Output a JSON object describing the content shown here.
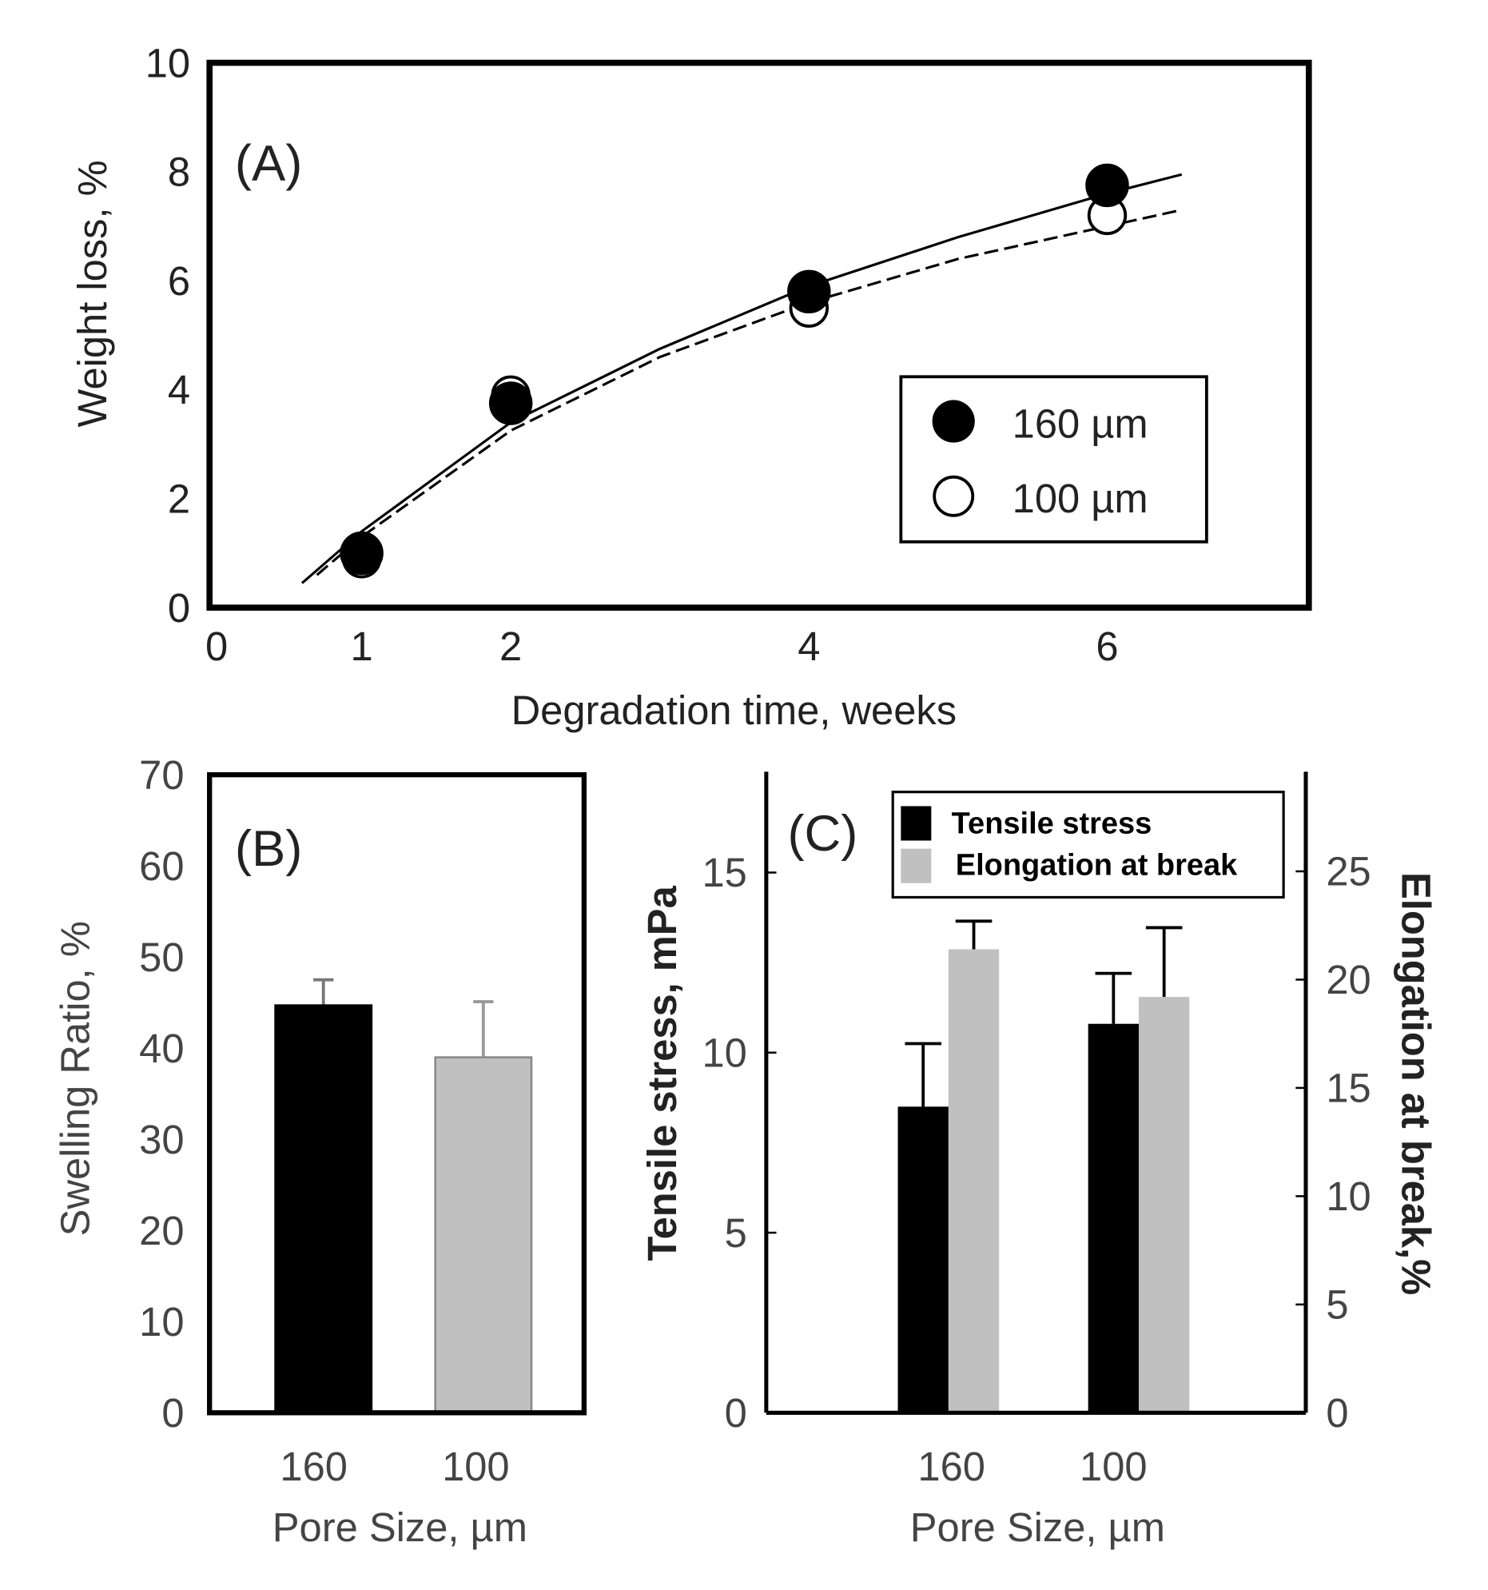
{
  "chart_data": [
    {
      "type": "scatter",
      "panel_label": "(A)",
      "xlabel": "Degradation time, weeks",
      "ylabel": "Weight loss, %",
      "xlim": [
        0,
        7.4
      ],
      "ylim": [
        0,
        10
      ],
      "xticks": [
        "0",
        "1",
        "2",
        "4",
        "6"
      ],
      "yticks": [
        "0",
        "2",
        "4",
        "6",
        "8",
        "10"
      ],
      "legend_position": "bottom-right",
      "series": [
        {
          "name": "160 µm",
          "marker": "filled-circle",
          "x": [
            1,
            2,
            4,
            6
          ],
          "y": [
            1.0,
            3.75,
            5.8,
            7.75
          ],
          "fit_line": "solid",
          "fit_x": [
            0.6,
            1,
            2,
            3,
            4,
            5,
            6,
            6.5
          ],
          "fit_y": [
            0.45,
            1.4,
            3.4,
            4.75,
            5.9,
            6.8,
            7.6,
            7.95
          ]
        },
        {
          "name": "100 µm",
          "marker": "open-circle",
          "x": [
            1,
            2,
            4,
            6
          ],
          "y": [
            0.9,
            3.9,
            5.5,
            7.2
          ],
          "fit_line": "dashed",
          "fit_x": [
            0.7,
            1,
            2,
            3,
            4,
            5,
            6,
            6.5
          ],
          "fit_y": [
            0.6,
            1.3,
            3.25,
            4.6,
            5.6,
            6.4,
            7.0,
            7.3
          ]
        }
      ]
    },
    {
      "type": "bar",
      "panel_label": "(B)",
      "xlabel": "Pore Size, µm",
      "ylabel": "Swelling Ratio, %",
      "ylim": [
        0,
        70
      ],
      "yticks": [
        "0",
        "10",
        "20",
        "30",
        "40",
        "50",
        "60",
        "70"
      ],
      "categories": [
        "160",
        "100"
      ],
      "values": [
        44.7,
        39.0
      ],
      "error_upper": [
        47.5,
        45.1
      ],
      "colors": [
        "#000000",
        "#c0c0c0"
      ]
    },
    {
      "type": "bar",
      "panel_label": "(C)",
      "xlabel": "Pore Size, µm",
      "ylabel": "Tensile stress, mPa",
      "ylabel_right": "Elongation at break,%",
      "ylim": [
        0,
        17.8
      ],
      "ylim_right": [
        0,
        29.6
      ],
      "yticks": [
        "0",
        "5",
        "10",
        "15"
      ],
      "yticks_right": [
        "0",
        "5",
        "10",
        "15",
        "20",
        "25"
      ],
      "categories": [
        "160",
        "100"
      ],
      "legend_position": "top-right",
      "series": [
        {
          "name": "Tensile stress",
          "axis": "left",
          "color": "#000000",
          "values": [
            8.5,
            10.8
          ],
          "error_upper": [
            10.25,
            12.2
          ]
        },
        {
          "name": "Elongation at break",
          "axis": "right",
          "color": "#c0c0c0",
          "values": [
            21.4,
            19.2
          ],
          "error_upper": [
            22.7,
            22.4
          ]
        }
      ]
    }
  ]
}
